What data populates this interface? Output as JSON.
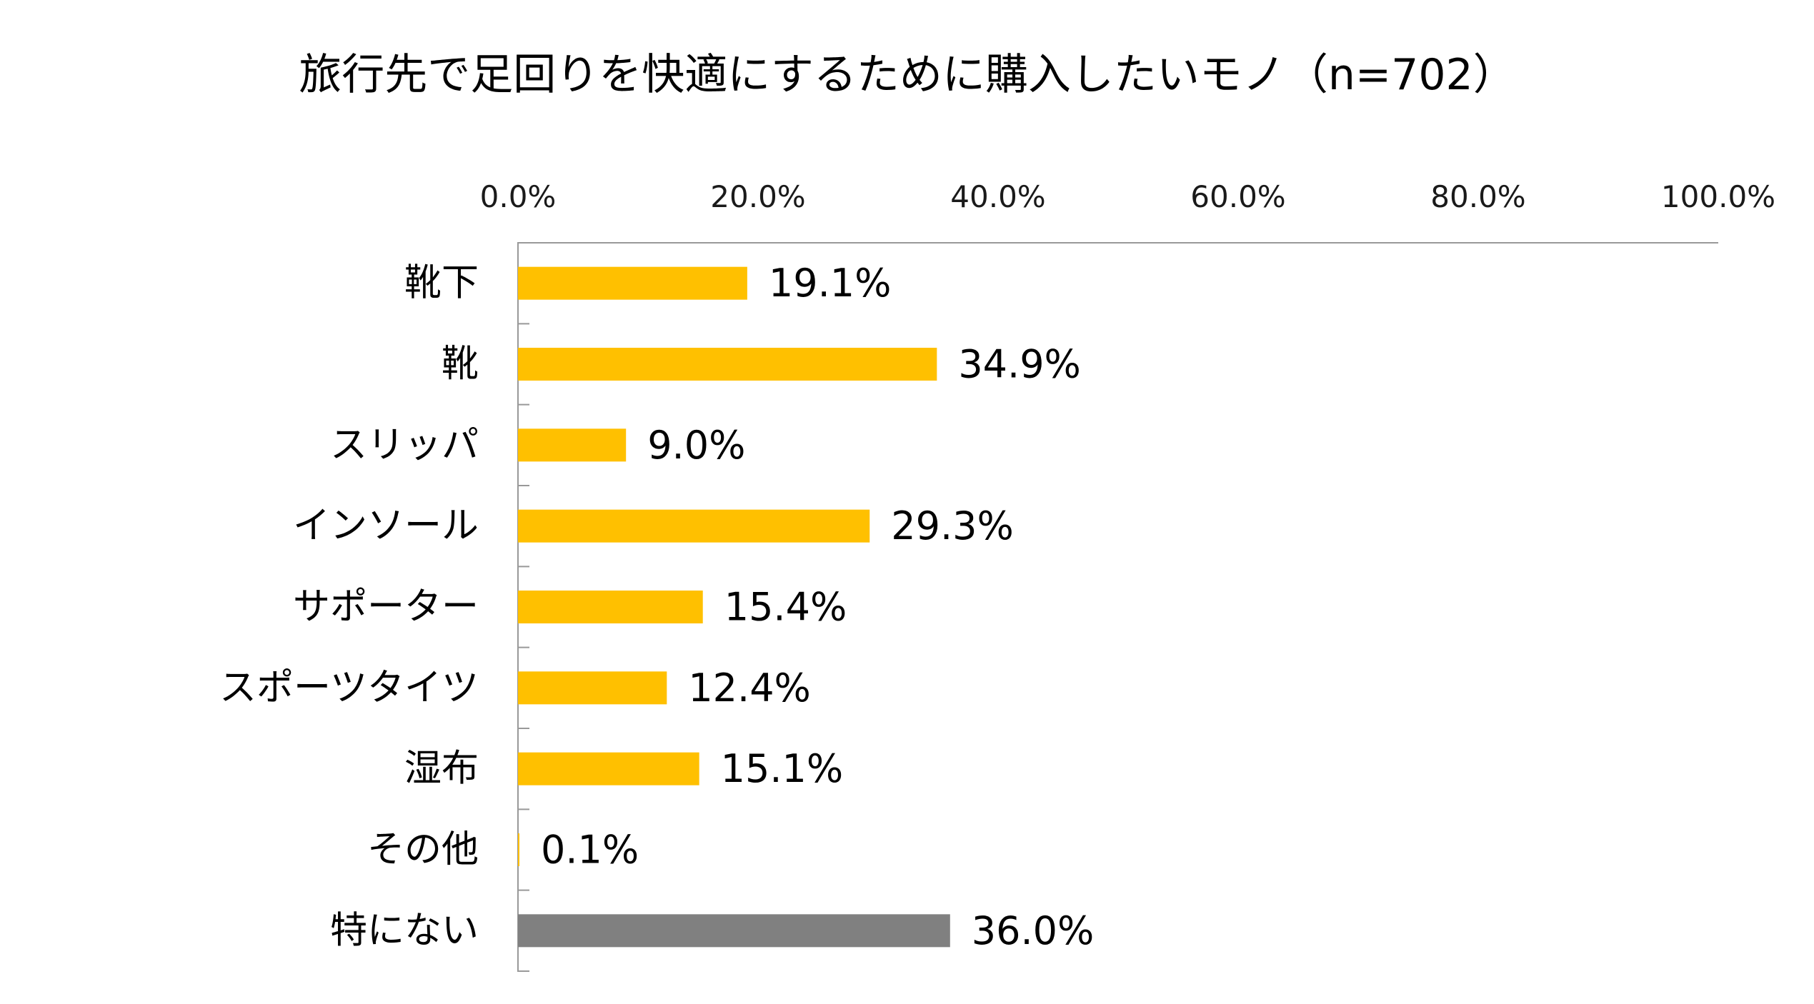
{
  "chart_data": {
    "type": "bar",
    "orientation": "horizontal",
    "title": "旅行先で足回りを快適にするために購入したいモノ（n=702）",
    "categories": [
      "靴下",
      "靴",
      "スリッパ",
      "インソール",
      "サポーター",
      "スポーツタイツ",
      "湿布",
      "その他",
      "特にない"
    ],
    "values": [
      19.1,
      34.9,
      9.0,
      29.3,
      15.4,
      12.4,
      15.1,
      0.1,
      36.0
    ],
    "value_labels": [
      "19.1%",
      "34.9%",
      "9.0%",
      "29.3%",
      "15.4%",
      "12.4%",
      "15.1%",
      "0.1%",
      "36.0%"
    ],
    "bar_colors": [
      "#FFC000",
      "#FFC000",
      "#FFC000",
      "#FFC000",
      "#FFC000",
      "#FFC000",
      "#FFC000",
      "#FFC000",
      "#808080"
    ],
    "xlim": [
      0,
      100
    ],
    "x_ticks": [
      0,
      20,
      40,
      60,
      80,
      100
    ],
    "x_tick_labels": [
      "0.0%",
      "20.0%",
      "40.0%",
      "60.0%",
      "80.0%",
      "100.0%"
    ],
    "x_axis_position": "top",
    "grid": false,
    "legend": "none"
  }
}
